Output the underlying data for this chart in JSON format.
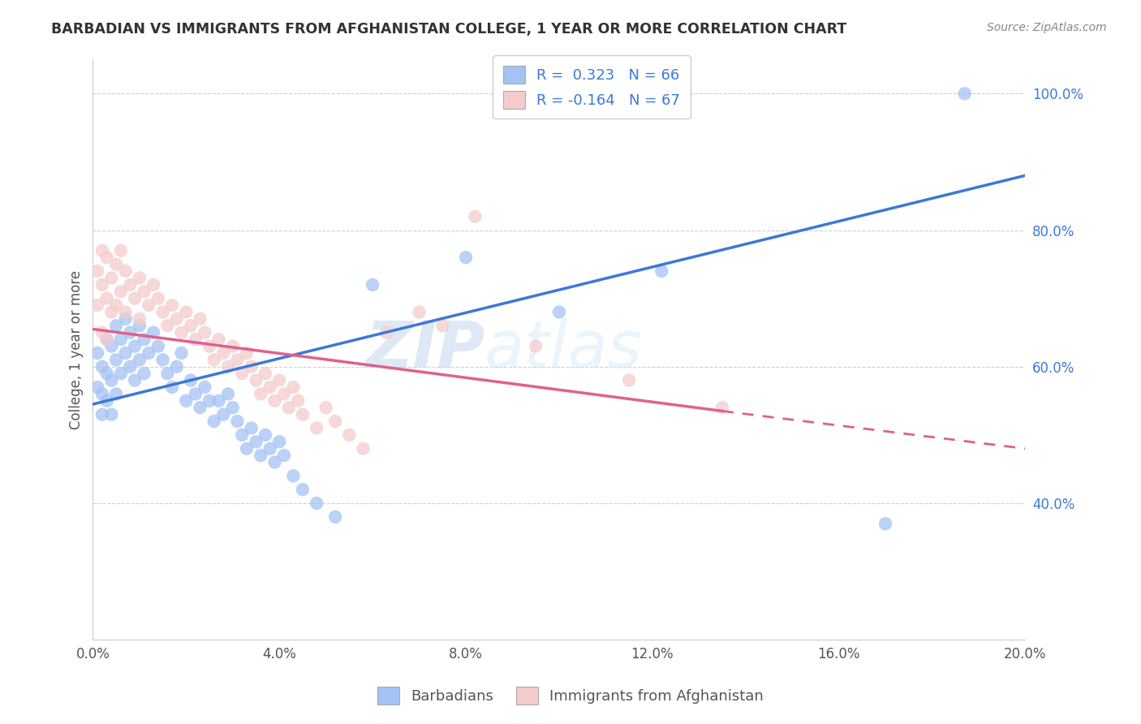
{
  "title": "BARBADIAN VS IMMIGRANTS FROM AFGHANISTAN COLLEGE, 1 YEAR OR MORE CORRELATION CHART",
  "source": "Source: ZipAtlas.com",
  "ylabel": "College, 1 year or more",
  "legend_labels": [
    "Barbadians",
    "Immigrants from Afghanistan"
  ],
  "blue_color": "#a4c2f4",
  "pink_color": "#f4cccc",
  "blue_line_color": "#3c78d8",
  "pink_line_color": "#e06090",
  "r_blue": "0.323",
  "r_pink": "-0.164",
  "n_blue": "66",
  "n_pink": "67",
  "xlim": [
    0.0,
    0.2
  ],
  "ylim": [
    0.2,
    1.05
  ],
  "xticks": [
    0.0,
    0.04,
    0.08,
    0.12,
    0.16,
    0.2
  ],
  "yticks_right": [
    0.4,
    0.6,
    0.8,
    1.0
  ],
  "blue_line_x0": 0.0,
  "blue_line_y0": 0.545,
  "blue_line_x1": 0.2,
  "blue_line_y1": 0.88,
  "pink_line_x0": 0.0,
  "pink_line_y0": 0.655,
  "pink_line_x1_solid": 0.135,
  "pink_line_y1_solid": 0.535,
  "pink_line_x1_dash": 0.2,
  "pink_line_y1_dash": 0.48,
  "blue_scatter_x": [
    0.001,
    0.001,
    0.002,
    0.002,
    0.002,
    0.003,
    0.003,
    0.003,
    0.004,
    0.004,
    0.004,
    0.005,
    0.005,
    0.005,
    0.006,
    0.006,
    0.007,
    0.007,
    0.008,
    0.008,
    0.009,
    0.009,
    0.01,
    0.01,
    0.011,
    0.011,
    0.012,
    0.013,
    0.014,
    0.015,
    0.016,
    0.017,
    0.018,
    0.019,
    0.02,
    0.021,
    0.022,
    0.023,
    0.024,
    0.025,
    0.026,
    0.027,
    0.028,
    0.029,
    0.03,
    0.031,
    0.032,
    0.033,
    0.034,
    0.035,
    0.036,
    0.037,
    0.038,
    0.039,
    0.04,
    0.041,
    0.043,
    0.045,
    0.048,
    0.052,
    0.06,
    0.08,
    0.1,
    0.122,
    0.17,
    0.187
  ],
  "blue_scatter_y": [
    0.62,
    0.57,
    0.6,
    0.56,
    0.53,
    0.64,
    0.59,
    0.55,
    0.63,
    0.58,
    0.53,
    0.66,
    0.61,
    0.56,
    0.64,
    0.59,
    0.67,
    0.62,
    0.65,
    0.6,
    0.63,
    0.58,
    0.66,
    0.61,
    0.64,
    0.59,
    0.62,
    0.65,
    0.63,
    0.61,
    0.59,
    0.57,
    0.6,
    0.62,
    0.55,
    0.58,
    0.56,
    0.54,
    0.57,
    0.55,
    0.52,
    0.55,
    0.53,
    0.56,
    0.54,
    0.52,
    0.5,
    0.48,
    0.51,
    0.49,
    0.47,
    0.5,
    0.48,
    0.46,
    0.49,
    0.47,
    0.44,
    0.42,
    0.4,
    0.38,
    0.72,
    0.76,
    0.68,
    0.74,
    0.37,
    1.0
  ],
  "pink_scatter_x": [
    0.001,
    0.001,
    0.002,
    0.002,
    0.002,
    0.003,
    0.003,
    0.003,
    0.004,
    0.004,
    0.005,
    0.005,
    0.006,
    0.006,
    0.007,
    0.007,
    0.008,
    0.009,
    0.01,
    0.01,
    0.011,
    0.012,
    0.013,
    0.014,
    0.015,
    0.016,
    0.017,
    0.018,
    0.019,
    0.02,
    0.021,
    0.022,
    0.023,
    0.024,
    0.025,
    0.026,
    0.027,
    0.028,
    0.029,
    0.03,
    0.031,
    0.032,
    0.033,
    0.034,
    0.035,
    0.036,
    0.037,
    0.038,
    0.039,
    0.04,
    0.041,
    0.042,
    0.043,
    0.044,
    0.045,
    0.048,
    0.05,
    0.052,
    0.055,
    0.058,
    0.063,
    0.07,
    0.075,
    0.082,
    0.095,
    0.115,
    0.135
  ],
  "pink_scatter_y": [
    0.74,
    0.69,
    0.77,
    0.72,
    0.65,
    0.76,
    0.7,
    0.64,
    0.73,
    0.68,
    0.75,
    0.69,
    0.77,
    0.71,
    0.74,
    0.68,
    0.72,
    0.7,
    0.73,
    0.67,
    0.71,
    0.69,
    0.72,
    0.7,
    0.68,
    0.66,
    0.69,
    0.67,
    0.65,
    0.68,
    0.66,
    0.64,
    0.67,
    0.65,
    0.63,
    0.61,
    0.64,
    0.62,
    0.6,
    0.63,
    0.61,
    0.59,
    0.62,
    0.6,
    0.58,
    0.56,
    0.59,
    0.57,
    0.55,
    0.58,
    0.56,
    0.54,
    0.57,
    0.55,
    0.53,
    0.51,
    0.54,
    0.52,
    0.5,
    0.48,
    0.65,
    0.68,
    0.66,
    0.82,
    0.63,
    0.58,
    0.54
  ],
  "background_color": "#ffffff",
  "grid_color": "#d0d0d0"
}
